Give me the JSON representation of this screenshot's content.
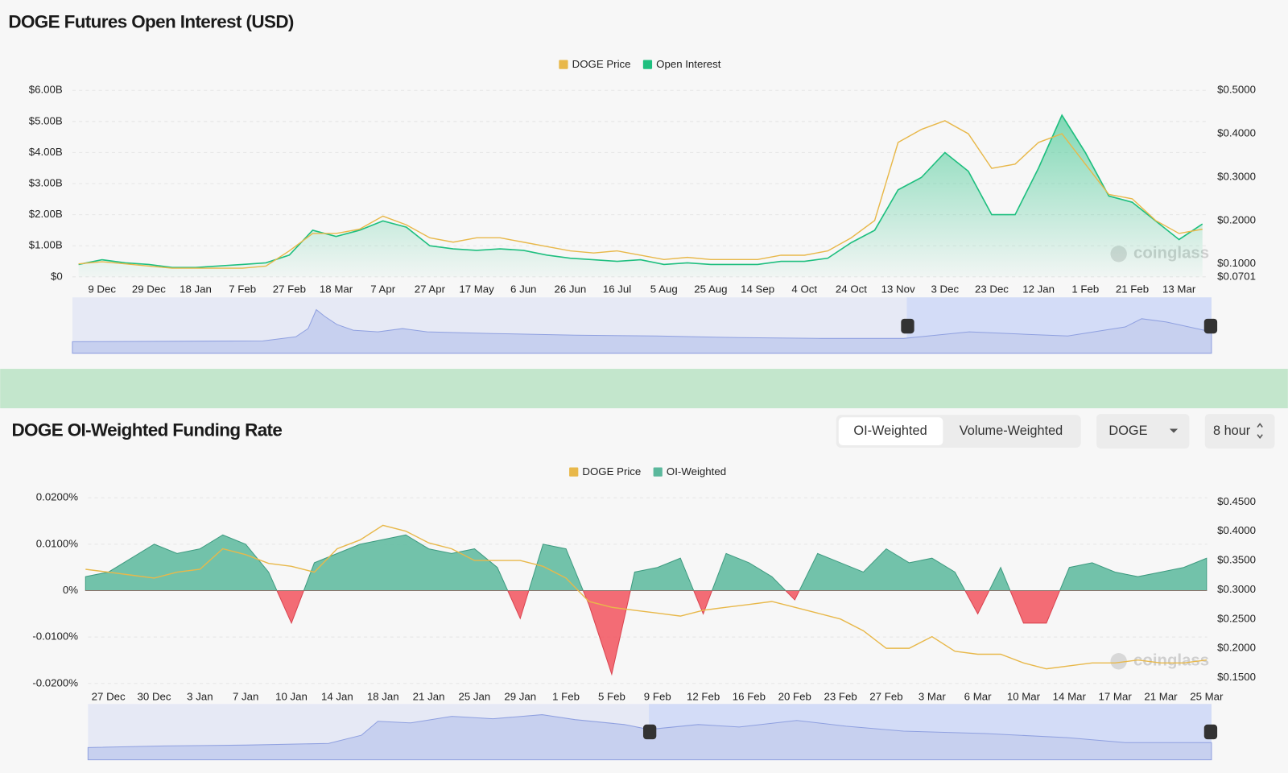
{
  "chart_data": [
    {
      "type": "line",
      "title": "DOGE Futures Open Interest (USD)",
      "watermark": "coinglass",
      "grid": true,
      "legend": "top",
      "categories": [
        null,
        "9 Dec",
        null,
        "29 Dec",
        null,
        "18 Jan",
        null,
        "7 Feb",
        null,
        "27 Feb",
        null,
        "18 Mar",
        null,
        "7 Apr",
        null,
        "27 Apr",
        null,
        "17 May",
        null,
        "6 Jun",
        null,
        "26 Jun",
        null,
        "16 Jul",
        null,
        "5 Aug",
        null,
        "25 Aug",
        null,
        "14 Sep",
        null,
        "4 Oct",
        null,
        "24 Oct",
        null,
        "13 Nov",
        null,
        "3 Dec",
        null,
        "23 Dec",
        null,
        "12 Jan",
        null,
        "1 Feb",
        null,
        "21 Feb",
        null,
        "13 Mar",
        null
      ],
      "ylim": [
        0,
        6
      ],
      "yticks": [
        {
          "value": 0,
          "label": "$0"
        },
        {
          "value": 1,
          "label": "$1.00B"
        },
        {
          "value": 2,
          "label": "$2.00B"
        },
        {
          "value": 3,
          "label": "$3.00B"
        },
        {
          "value": 4,
          "label": "$4.00B"
        },
        {
          "value": 5,
          "label": "$5.00B"
        },
        {
          "value": 6,
          "label": "$6.00B"
        }
      ],
      "y2lim": [
        0.0701,
        0.5
      ],
      "y2ticks": [
        {
          "value": 0.0701,
          "label": "$0.0701"
        },
        {
          "value": 0.1,
          "label": "$0.1000"
        },
        {
          "value": 0.2,
          "label": "$0.2000"
        },
        {
          "value": 0.3,
          "label": "$0.3000"
        },
        {
          "value": 0.4,
          "label": "$0.4000"
        },
        {
          "value": 0.5,
          "label": "$0.5000"
        }
      ],
      "series": [
        {
          "name": "DOGE Price",
          "color": "#e8b84a",
          "axis": "y2",
          "style": "line",
          "values": [
            0.1,
            0.105,
            0.1,
            0.095,
            0.09,
            0.09,
            0.09,
            0.09,
            0.095,
            0.13,
            0.17,
            0.17,
            0.18,
            0.21,
            0.19,
            0.16,
            0.15,
            0.16,
            0.16,
            0.15,
            0.14,
            0.13,
            0.125,
            0.13,
            0.12,
            0.11,
            0.115,
            0.11,
            0.11,
            0.11,
            0.12,
            0.12,
            0.13,
            0.16,
            0.2,
            0.38,
            0.41,
            0.43,
            0.4,
            0.32,
            0.33,
            0.38,
            0.4,
            0.33,
            0.26,
            0.25,
            0.2,
            0.17,
            0.18
          ]
        },
        {
          "name": "Open Interest",
          "color": "#1fbf7f",
          "style": "area",
          "values": [
            0.4,
            0.55,
            0.45,
            0.4,
            0.3,
            0.3,
            0.35,
            0.4,
            0.45,
            0.7,
            1.5,
            1.3,
            1.5,
            1.8,
            1.6,
            1.0,
            0.9,
            0.85,
            0.9,
            0.85,
            0.7,
            0.6,
            0.55,
            0.5,
            0.55,
            0.4,
            0.45,
            0.4,
            0.4,
            0.4,
            0.5,
            0.5,
            0.6,
            1.1,
            1.5,
            2.8,
            3.2,
            4.0,
            3.4,
            2.0,
            2.0,
            3.5,
            5.2,
            4.0,
            2.6,
            2.4,
            1.8,
            1.2,
            1.7
          ]
        }
      ]
    },
    {
      "type": "line",
      "title": "DOGE OI-Weighted Funding Rate",
      "watermark": "coinglass",
      "grid": true,
      "legend": "top",
      "categories": [
        null,
        "27 Dec",
        null,
        "30 Dec",
        null,
        "3 Jan",
        null,
        "7 Jan",
        null,
        "10 Jan",
        null,
        "14 Jan",
        null,
        "18 Jan",
        null,
        "21 Jan",
        null,
        "25 Jan",
        null,
        "29 Jan",
        null,
        "1 Feb",
        null,
        "5 Feb",
        null,
        "9 Feb",
        null,
        "12 Feb",
        null,
        "16 Feb",
        null,
        "20 Feb",
        null,
        "23 Feb",
        null,
        "27 Feb",
        null,
        "3 Mar",
        null,
        "6 Mar",
        null,
        "10 Mar",
        null,
        "14 Mar",
        null,
        "17 Mar",
        null,
        "21 Mar",
        null,
        "25 Mar"
      ],
      "ylim": [
        -0.02,
        0.02
      ],
      "yticks": [
        {
          "value": -0.02,
          "label": "-0.0200%"
        },
        {
          "value": -0.01,
          "label": "-0.0100%"
        },
        {
          "value": 0,
          "label": "0%"
        },
        {
          "value": 0.01,
          "label": "0.0100%"
        },
        {
          "value": 0.02,
          "label": "0.0200%"
        }
      ],
      "y2lim": [
        0.14,
        0.457
      ],
      "y2ticks": [
        {
          "value": 0.15,
          "label": "$0.1500"
        },
        {
          "value": 0.2,
          "label": "$0.2000"
        },
        {
          "value": 0.25,
          "label": "$0.2500"
        },
        {
          "value": 0.3,
          "label": "$0.3000"
        },
        {
          "value": 0.35,
          "label": "$0.3500"
        },
        {
          "value": 0.4,
          "label": "$0.4000"
        },
        {
          "value": 0.45,
          "label": "$0.4500"
        }
      ],
      "series": [
        {
          "name": "DOGE Price",
          "color": "#e8b84a",
          "axis": "y2",
          "style": "line",
          "values": [
            0.335,
            0.33,
            0.325,
            0.32,
            0.33,
            0.335,
            0.37,
            0.36,
            0.345,
            0.34,
            0.33,
            0.37,
            0.385,
            0.41,
            0.4,
            0.38,
            0.37,
            0.35,
            0.35,
            0.35,
            0.34,
            0.32,
            0.28,
            0.27,
            0.265,
            0.26,
            0.255,
            0.265,
            0.27,
            0.275,
            0.28,
            0.27,
            0.26,
            0.25,
            0.23,
            0.2,
            0.2,
            0.22,
            0.195,
            0.19,
            0.19,
            0.175,
            0.165,
            0.17,
            0.175,
            0.175,
            0.18,
            0.175,
            0.175,
            0.18
          ]
        },
        {
          "name": "OI-Weighted",
          "color": "#5bb89c",
          "negative_color": "#f25c66",
          "style": "area",
          "values": [
            0.003,
            0.004,
            0.007,
            0.01,
            0.008,
            0.009,
            0.012,
            0.01,
            0.004,
            -0.007,
            0.006,
            0.008,
            0.01,
            0.011,
            0.012,
            0.009,
            0.008,
            0.009,
            0.005,
            -0.006,
            0.01,
            0.009,
            -0.003,
            -0.018,
            0.004,
            0.005,
            0.007,
            -0.005,
            0.008,
            0.006,
            0.003,
            -0.002,
            0.008,
            0.006,
            0.004,
            0.009,
            0.006,
            0.007,
            0.004,
            -0.005,
            0.005,
            -0.007,
            -0.007,
            0.005,
            0.006,
            0.004,
            0.003,
            0.004,
            0.005,
            0.007
          ]
        }
      ]
    }
  ],
  "controls": {
    "tabs": [
      "OI-Weighted",
      "Volume-Weighted"
    ],
    "symbol": "DOGE",
    "interval": "8 hour"
  }
}
